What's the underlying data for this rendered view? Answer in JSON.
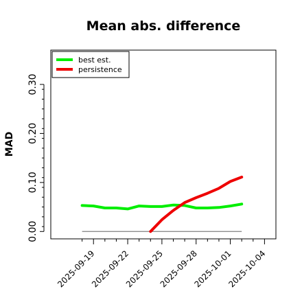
{
  "chart_data": {
    "type": "line",
    "title": "Mean abs. difference",
    "xlabel": "",
    "ylabel": "MAD",
    "x_start": "2025-09-17",
    "x_ticks": [
      "2025-09-19",
      "2025-09-22",
      "2025-09-25",
      "2025-09-28",
      "2025-10-01",
      "2025-10-04"
    ],
    "xlim": [
      "2025-09-17",
      "2025-10-05"
    ],
    "yticks": [
      0.0,
      0.1,
      0.2,
      0.3
    ],
    "ytick_labels": [
      "0.00",
      "0.10",
      "0.20",
      "0.30"
    ],
    "ylim": [
      -0.015,
      0.37
    ],
    "grid": false,
    "legend_position": "top-left",
    "reference_line": {
      "y": 0.0,
      "color": "#808080"
    },
    "series": [
      {
        "name": "best est.",
        "color": "#00ee00",
        "points": [
          {
            "x": "2025-09-18",
            "y": 0.053
          },
          {
            "x": "2025-09-19",
            "y": 0.052
          },
          {
            "x": "2025-09-20",
            "y": 0.048
          },
          {
            "x": "2025-09-21",
            "y": 0.048
          },
          {
            "x": "2025-09-22",
            "y": 0.046
          },
          {
            "x": "2025-09-23",
            "y": 0.052
          },
          {
            "x": "2025-09-24",
            "y": 0.051
          },
          {
            "x": "2025-09-25",
            "y": 0.051
          },
          {
            "x": "2025-09-26",
            "y": 0.054
          },
          {
            "x": "2025-09-27",
            "y": 0.053
          },
          {
            "x": "2025-09-28",
            "y": 0.048
          },
          {
            "x": "2025-09-29",
            "y": 0.048
          },
          {
            "x": "2025-09-30",
            "y": 0.049
          },
          {
            "x": "2025-10-01",
            "y": 0.052
          },
          {
            "x": "2025-10-02",
            "y": 0.056
          }
        ]
      },
      {
        "name": "persistence",
        "color": "#ee0000",
        "points": [
          {
            "x": "2025-09-24",
            "y": 0.0
          },
          {
            "x": "2025-09-25",
            "y": 0.024
          },
          {
            "x": "2025-09-26",
            "y": 0.043
          },
          {
            "x": "2025-09-27",
            "y": 0.059
          },
          {
            "x": "2025-09-28",
            "y": 0.069
          },
          {
            "x": "2025-09-29",
            "y": 0.078
          },
          {
            "x": "2025-09-30",
            "y": 0.088
          },
          {
            "x": "2025-10-01",
            "y": 0.102
          },
          {
            "x": "2025-10-02",
            "y": 0.111
          }
        ]
      }
    ]
  }
}
